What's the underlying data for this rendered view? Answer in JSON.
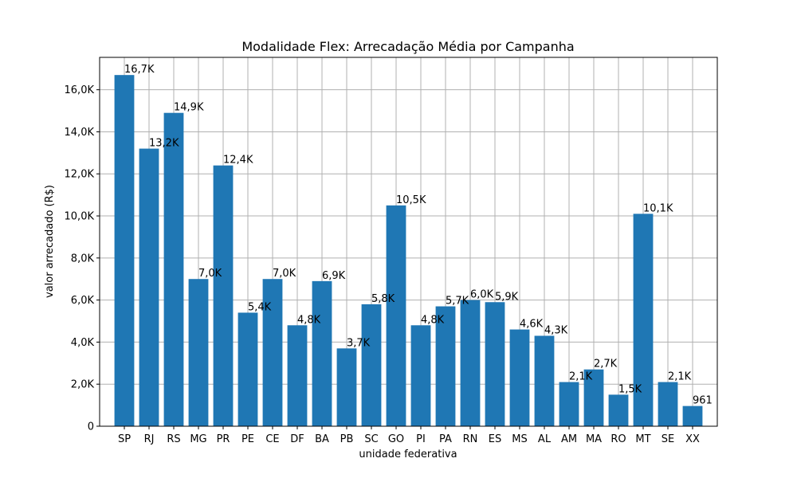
{
  "chart_data": {
    "type": "bar",
    "title": "Modalidade Flex: Arrecadação Média por Campanha",
    "xlabel": "unidade federativa",
    "ylabel": "valor arrecadado (R$)",
    "categories": [
      "SP",
      "RJ",
      "RS",
      "MG",
      "PR",
      "PE",
      "CE",
      "DF",
      "BA",
      "PB",
      "SC",
      "GO",
      "PI",
      "PA",
      "RN",
      "ES",
      "MS",
      "AL",
      "AM",
      "MA",
      "RO",
      "MT",
      "SE",
      "XX"
    ],
    "values": [
      16700,
      13200,
      14900,
      7000,
      12400,
      5400,
      7000,
      4800,
      6900,
      3700,
      5800,
      10500,
      4800,
      5700,
      6000,
      5900,
      4600,
      4300,
      2100,
      2700,
      1500,
      10100,
      2100,
      961
    ],
    "data_labels": [
      "16,7K",
      "13,2K",
      "14,9K",
      "7,0K",
      "12,4K",
      "5,4K",
      "7,0K",
      "4,8K",
      "6,9K",
      "3,7K",
      "5,8K",
      "10,5K",
      "4,8K",
      "5,7K",
      "6,0K",
      "5,9K",
      "4,6K",
      "4,3K",
      "2,1K",
      "2,7K",
      "1,5K",
      "10,1K",
      "2,1K",
      "961"
    ],
    "ylim": [
      0,
      17540
    ],
    "yticks": [
      0,
      2000,
      4000,
      6000,
      8000,
      10000,
      12000,
      14000,
      16000
    ],
    "ytick_labels": [
      "0",
      "2,0K",
      "4,0K",
      "6,0K",
      "8,0K",
      "10,0K",
      "12,0K",
      "14,0K",
      "16,0K"
    ],
    "grid": true,
    "bar_color": "#1f77b4"
  }
}
